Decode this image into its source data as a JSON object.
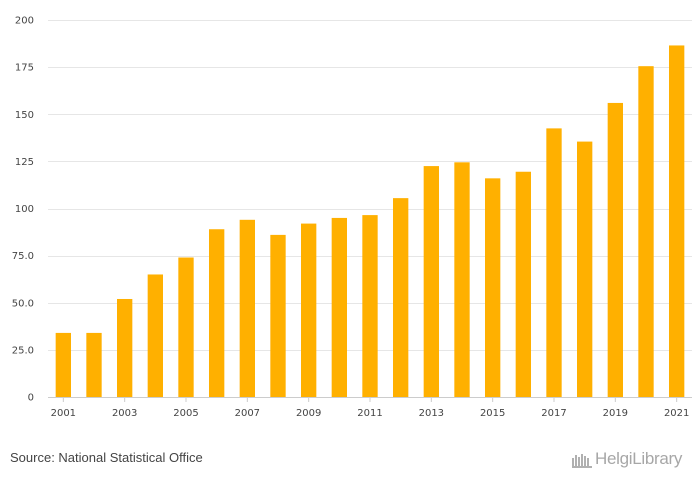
{
  "chart_data": {
    "type": "bar",
    "title": "",
    "xlabel": "",
    "ylabel": "",
    "categories": [
      "2001",
      "2002",
      "2003",
      "2004",
      "2005",
      "2006",
      "2007",
      "2008",
      "2009",
      "2010",
      "2011",
      "2012",
      "2013",
      "2014",
      "2015",
      "2016",
      "2017",
      "2018",
      "2019",
      "2020",
      "2021"
    ],
    "values": [
      34,
      34,
      52,
      65,
      74,
      89,
      94,
      86,
      92,
      95,
      96.5,
      105.5,
      122.5,
      124.5,
      116,
      119.5,
      142.5,
      135.5,
      156,
      175.5,
      186.5
    ],
    "x_tick_labels": [
      "2001",
      "2003",
      "2005",
      "2007",
      "2009",
      "2011",
      "2013",
      "2015",
      "2017",
      "2019",
      "2021"
    ],
    "y_ticks": [
      0,
      25,
      50,
      75,
      100,
      125,
      150,
      175,
      200
    ],
    "y_tick_labels": [
      "0",
      "25.0",
      "50.0",
      "75.0",
      "100",
      "125",
      "150",
      "175",
      "200"
    ],
    "ylim": [
      0,
      200
    ],
    "grid": true,
    "bar_color": "#ffb000"
  },
  "footer": {
    "source": "Source: National Statistical Office",
    "brand": "HelgiLibrary"
  }
}
